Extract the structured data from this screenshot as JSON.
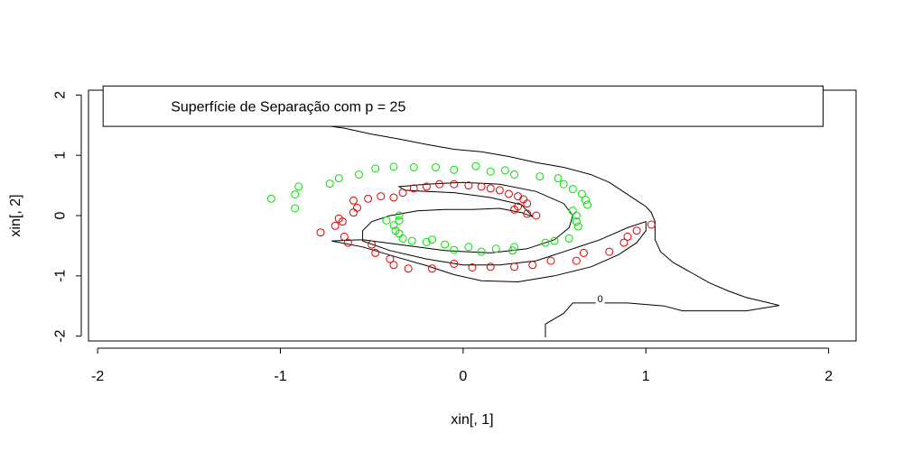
{
  "chart_data": {
    "type": "scatter",
    "title": "",
    "xlabel": "xin[, 1]",
    "ylabel": "xin[, 2]",
    "xlim": [
      -2.05,
      2.15
    ],
    "ylim": [
      -2.08,
      2.08
    ],
    "x_ticks": [
      -2,
      -1,
      0,
      1,
      2
    ],
    "y_ticks": [
      -2,
      -1,
      0,
      1,
      2
    ],
    "x_tick_labels": [
      "-2",
      "-1",
      "0",
      "1",
      "2"
    ],
    "y_tick_labels": [
      "-2",
      "-1",
      "0",
      "1",
      "2"
    ],
    "grid": false,
    "legend": {
      "text": "Superfície de Separação com p = 25",
      "placement": "top",
      "box_x": [
        -1.97,
        1.97
      ],
      "box_y": [
        1.48,
        2.15
      ]
    },
    "colors": {
      "class_green": "#00e000",
      "class_red": "#e00000",
      "contour": "#000000"
    },
    "contour": {
      "label": "0",
      "label_at": [
        0.75,
        -1.38
      ],
      "outer": [
        [
          -0.75,
          2.12
        ],
        [
          -0.75,
          1.55
        ],
        [
          -0.72,
          1.48
        ],
        [
          -0.65,
          1.45
        ],
        [
          -0.5,
          1.35
        ],
        [
          -0.35,
          1.27
        ],
        [
          -0.2,
          1.18
        ],
        [
          -0.05,
          1.1
        ],
        [
          0.1,
          1.06
        ],
        [
          0.25,
          0.98
        ],
        [
          0.4,
          0.88
        ],
        [
          0.55,
          0.8
        ],
        [
          0.7,
          0.68
        ],
        [
          0.8,
          0.55
        ],
        [
          0.85,
          0.45
        ],
        [
          0.9,
          0.35
        ],
        [
          0.95,
          0.25
        ],
        [
          1.0,
          0.15
        ],
        [
          1.03,
          0.05
        ],
        [
          1.05,
          -0.1
        ],
        [
          1.05,
          -0.25
        ],
        [
          1.05,
          -0.4
        ],
        [
          1.08,
          -0.6
        ],
        [
          1.15,
          -0.78
        ],
        [
          1.25,
          -0.95
        ],
        [
          1.35,
          -1.12
        ],
        [
          1.45,
          -1.25
        ],
        [
          1.55,
          -1.36
        ],
        [
          1.65,
          -1.43
        ],
        [
          1.73,
          -1.49
        ],
        [
          1.55,
          -1.58
        ],
        [
          1.2,
          -1.58
        ],
        [
          1.1,
          -1.5
        ],
        [
          0.9,
          -1.45
        ],
        [
          0.6,
          -1.45
        ],
        [
          0.55,
          -1.62
        ],
        [
          0.45,
          -1.8
        ],
        [
          0.45,
          -2.02
        ]
      ],
      "inner": [
        [
          -0.72,
          -0.42
        ],
        [
          -0.55,
          -0.52
        ],
        [
          -0.35,
          -0.7
        ],
        [
          -0.2,
          -0.83
        ],
        [
          -0.05,
          -0.98
        ],
        [
          0.1,
          -1.08
        ],
        [
          0.3,
          -1.1
        ],
        [
          0.5,
          -1.0
        ],
        [
          0.7,
          -0.85
        ],
        [
          0.85,
          -0.65
        ],
        [
          0.95,
          -0.45
        ],
        [
          1.0,
          -0.25
        ],
        [
          1.0,
          -0.1
        ],
        [
          0.9,
          -0.2
        ],
        [
          0.75,
          -0.4
        ],
        [
          0.6,
          -0.55
        ],
        [
          0.4,
          -0.75
        ],
        [
          0.2,
          -0.82
        ],
        [
          0.0,
          -0.82
        ],
        [
          -0.2,
          -0.72
        ],
        [
          -0.4,
          -0.58
        ],
        [
          -0.55,
          -0.42
        ],
        [
          -0.55,
          -0.25
        ],
        [
          -0.5,
          -0.1
        ],
        [
          -0.4,
          0.0
        ],
        [
          -0.25,
          0.08
        ],
        [
          -0.1,
          0.1
        ],
        [
          0.05,
          0.1
        ],
        [
          0.2,
          0.12
        ],
        [
          0.32,
          0.05
        ],
        [
          0.38,
          -0.02
        ],
        [
          0.32,
          0.18
        ],
        [
          0.15,
          0.3
        ],
        [
          -0.05,
          0.38
        ],
        [
          -0.2,
          0.4
        ],
        [
          -0.32,
          0.42
        ],
        [
          -0.35,
          0.48
        ],
        [
          -0.2,
          0.52
        ],
        [
          0.0,
          0.55
        ],
        [
          0.2,
          0.52
        ],
        [
          0.4,
          0.4
        ],
        [
          0.55,
          0.2
        ],
        [
          0.6,
          0.0
        ],
        [
          0.58,
          -0.2
        ],
        [
          0.5,
          -0.4
        ],
        [
          0.35,
          -0.55
        ],
        [
          0.15,
          -0.62
        ],
        [
          -0.1,
          -0.58
        ],
        [
          -0.35,
          -0.48
        ],
        [
          -0.55,
          -0.4
        ],
        [
          -0.72,
          -0.42
        ]
      ]
    },
    "series": [
      {
        "color": "#00e000",
        "points": [
          [
            -1.05,
            0.28
          ],
          [
            -0.92,
            0.12
          ],
          [
            -0.92,
            0.35
          ],
          [
            -0.9,
            0.48
          ],
          [
            -0.73,
            0.53
          ],
          [
            -0.68,
            0.62
          ],
          [
            -0.57,
            0.68
          ],
          [
            -0.48,
            0.78
          ],
          [
            -0.38,
            0.81
          ],
          [
            -0.27,
            0.8
          ],
          [
            -0.15,
            0.8
          ],
          [
            -0.05,
            0.76
          ],
          [
            0.07,
            0.82
          ],
          [
            0.15,
            0.73
          ],
          [
            0.23,
            0.75
          ],
          [
            0.28,
            0.68
          ],
          [
            0.42,
            0.65
          ],
          [
            0.52,
            0.62
          ],
          [
            0.55,
            0.52
          ],
          [
            0.6,
            0.44
          ],
          [
            0.65,
            0.36
          ],
          [
            0.67,
            0.26
          ],
          [
            0.68,
            0.18
          ],
          [
            0.6,
            0.08
          ],
          [
            0.62,
            0.0
          ],
          [
            0.62,
            -0.1
          ],
          [
            0.63,
            -0.18
          ],
          [
            0.58,
            -0.38
          ],
          [
            0.5,
            -0.42
          ],
          [
            0.45,
            -0.45
          ],
          [
            0.28,
            -0.52
          ],
          [
            0.27,
            -0.58
          ],
          [
            0.18,
            -0.55
          ],
          [
            0.1,
            -0.6
          ],
          [
            0.03,
            -0.52
          ],
          [
            -0.05,
            -0.57
          ],
          [
            -0.1,
            -0.48
          ],
          [
            -0.17,
            -0.4
          ],
          [
            -0.2,
            -0.44
          ],
          [
            -0.28,
            -0.42
          ],
          [
            -0.33,
            -0.38
          ],
          [
            -0.35,
            -0.3
          ],
          [
            -0.37,
            -0.25
          ],
          [
            -0.38,
            -0.16
          ],
          [
            -0.35,
            -0.08
          ],
          [
            -0.35,
            0.0
          ],
          [
            -0.42,
            -0.08
          ]
        ]
      },
      {
        "color": "#e00000",
        "points": [
          [
            -0.78,
            -0.28
          ],
          [
            -0.7,
            -0.17
          ],
          [
            -0.68,
            -0.05
          ],
          [
            -0.66,
            -0.1
          ],
          [
            -0.65,
            -0.35
          ],
          [
            -0.63,
            -0.45
          ],
          [
            -0.6,
            0.05
          ],
          [
            -0.58,
            0.13
          ],
          [
            -0.6,
            0.25
          ],
          [
            -0.52,
            0.28
          ],
          [
            -0.45,
            0.32
          ],
          [
            -0.38,
            0.3
          ],
          [
            -0.33,
            0.38
          ],
          [
            -0.27,
            0.45
          ],
          [
            -0.2,
            0.48
          ],
          [
            -0.13,
            0.52
          ],
          [
            -0.05,
            0.52
          ],
          [
            0.03,
            0.5
          ],
          [
            0.1,
            0.48
          ],
          [
            0.15,
            0.45
          ],
          [
            0.2,
            0.42
          ],
          [
            0.25,
            0.36
          ],
          [
            0.3,
            0.32
          ],
          [
            0.33,
            0.27
          ],
          [
            0.35,
            0.2
          ],
          [
            0.3,
            0.15
          ],
          [
            0.28,
            0.1
          ],
          [
            0.35,
            0.03
          ],
          [
            0.4,
            0.0
          ],
          [
            -0.5,
            -0.48
          ],
          [
            -0.48,
            -0.62
          ],
          [
            -0.4,
            -0.72
          ],
          [
            -0.38,
            -0.82
          ],
          [
            -0.3,
            -0.88
          ],
          [
            -0.17,
            -0.88
          ],
          [
            -0.05,
            -0.8
          ],
          [
            0.05,
            -0.86
          ],
          [
            0.15,
            -0.85
          ],
          [
            0.28,
            -0.85
          ],
          [
            0.38,
            -0.82
          ],
          [
            0.48,
            -0.75
          ],
          [
            0.62,
            -0.75
          ],
          [
            0.66,
            -0.62
          ],
          [
            0.8,
            -0.6
          ],
          [
            0.88,
            -0.45
          ],
          [
            0.9,
            -0.35
          ],
          [
            0.95,
            -0.25
          ],
          [
            1.03,
            -0.15
          ]
        ]
      }
    ]
  }
}
